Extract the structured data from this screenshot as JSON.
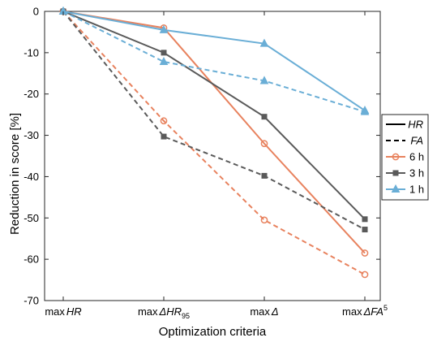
{
  "chart_data": {
    "type": "line",
    "xlabel": "Optimization criteria",
    "ylabel": "Reduction in score [%]",
    "ylim": [
      -70,
      0
    ],
    "yticks": [
      0,
      -10,
      -20,
      -30,
      -40,
      -50,
      -60,
      -70
    ],
    "categories": [
      {
        "prefix": "max",
        "main": "HR",
        "sub": "",
        "sup": ""
      },
      {
        "prefix": "max",
        "main": "ΔHR",
        "sub": "95",
        "sup": ""
      },
      {
        "prefix": "max",
        "main": "Δ",
        "sub": "",
        "sup": ""
      },
      {
        "prefix": "max",
        "main": "ΔFA",
        "sub": "",
        "sup": "5"
      }
    ],
    "grid": false,
    "legend_placement": "right",
    "legend": [
      {
        "label": "HR",
        "style": "solid",
        "italic": true
      },
      {
        "label": "FA",
        "style": "dashed",
        "italic": true
      },
      {
        "label": "6 h",
        "color": "#e8825e",
        "marker": "circle"
      },
      {
        "label": "3 h",
        "color": "#5a5a5a",
        "marker": "square"
      },
      {
        "label": "1 h",
        "color": "#6aaed6",
        "marker": "triangle"
      }
    ],
    "series": [
      {
        "horizon": "6 h",
        "metric": "HR",
        "color": "#e8825e",
        "marker": "circle",
        "dash": false,
        "values": [
          0,
          -4,
          -32,
          -58.5
        ]
      },
      {
        "horizon": "6 h",
        "metric": "FA",
        "color": "#e8825e",
        "marker": "circle",
        "dash": true,
        "values": [
          0,
          -26.5,
          -50.5,
          -63.7
        ]
      },
      {
        "horizon": "3 h",
        "metric": "HR",
        "color": "#5a5a5a",
        "marker": "square",
        "dash": false,
        "values": [
          0,
          -10,
          -25.5,
          -50.3
        ]
      },
      {
        "horizon": "3 h",
        "metric": "FA",
        "color": "#5a5a5a",
        "marker": "square",
        "dash": true,
        "values": [
          0,
          -30.3,
          -39.8,
          -52.8
        ]
      },
      {
        "horizon": "1 h",
        "metric": "HR",
        "color": "#6aaed6",
        "marker": "triangle",
        "dash": false,
        "values": [
          0,
          -4.5,
          -7.8,
          -24
        ]
      },
      {
        "horizon": "1 h",
        "metric": "FA",
        "color": "#6aaed6",
        "marker": "triangle",
        "dash": true,
        "values": [
          0,
          -12.2,
          -16.8,
          -24.3
        ]
      }
    ]
  }
}
